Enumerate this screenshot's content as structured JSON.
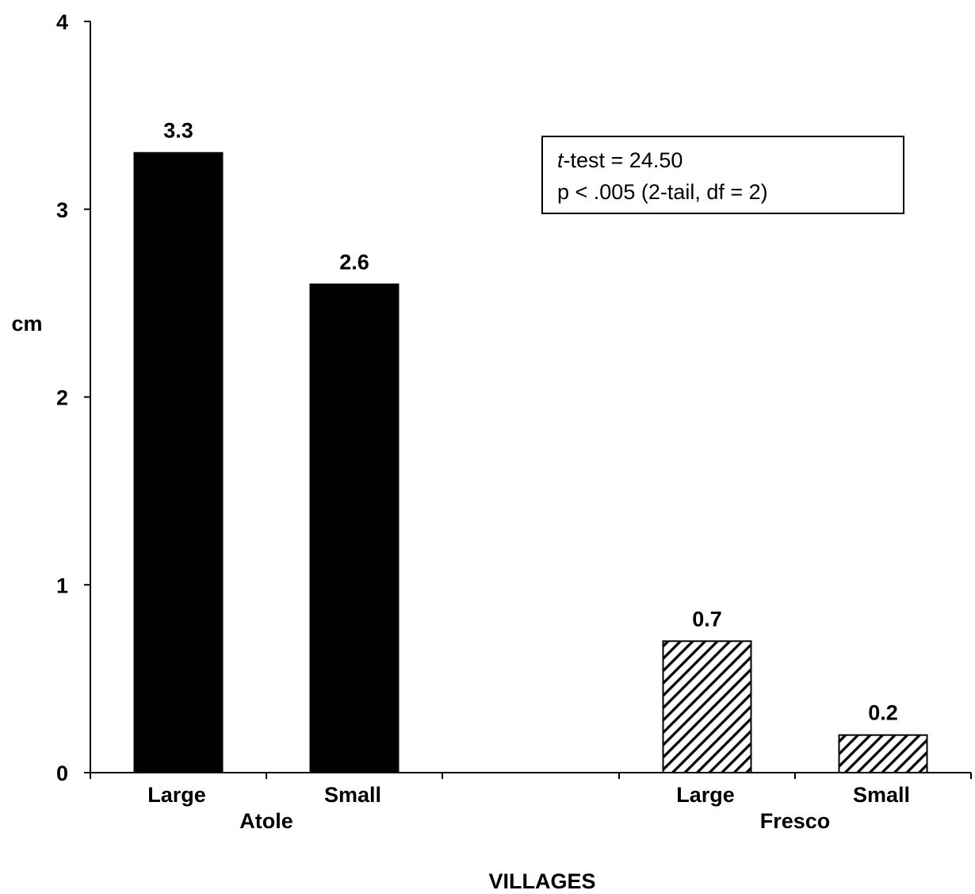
{
  "chart_data": {
    "type": "bar",
    "title": "",
    "xlabel": "VILLAGES",
    "ylabel": "cm",
    "ylim": [
      0,
      4
    ],
    "yticks": [
      "0",
      "1",
      "2",
      "3",
      "4"
    ],
    "grid": false,
    "groups": [
      {
        "name": "Atole",
        "fill": "#000000",
        "pattern": "solid",
        "bars": [
          {
            "category": "Large",
            "value": 3.3,
            "label": "3.3"
          },
          {
            "category": "Small",
            "value": 2.6,
            "label": "2.6"
          }
        ]
      },
      {
        "name": "Fresco",
        "fill": "#000000",
        "pattern": "diagonal-hatch",
        "bars": [
          {
            "category": "Large",
            "value": 0.7,
            "label": "0.7"
          },
          {
            "category": "Small",
            "value": 0.2,
            "label": "0.2"
          }
        ]
      }
    ],
    "annotation": {
      "line1_italic": "t",
      "line1_rest": "-test = 24.50",
      "line2": "p < .005 (2-tail, df = 2)"
    }
  }
}
